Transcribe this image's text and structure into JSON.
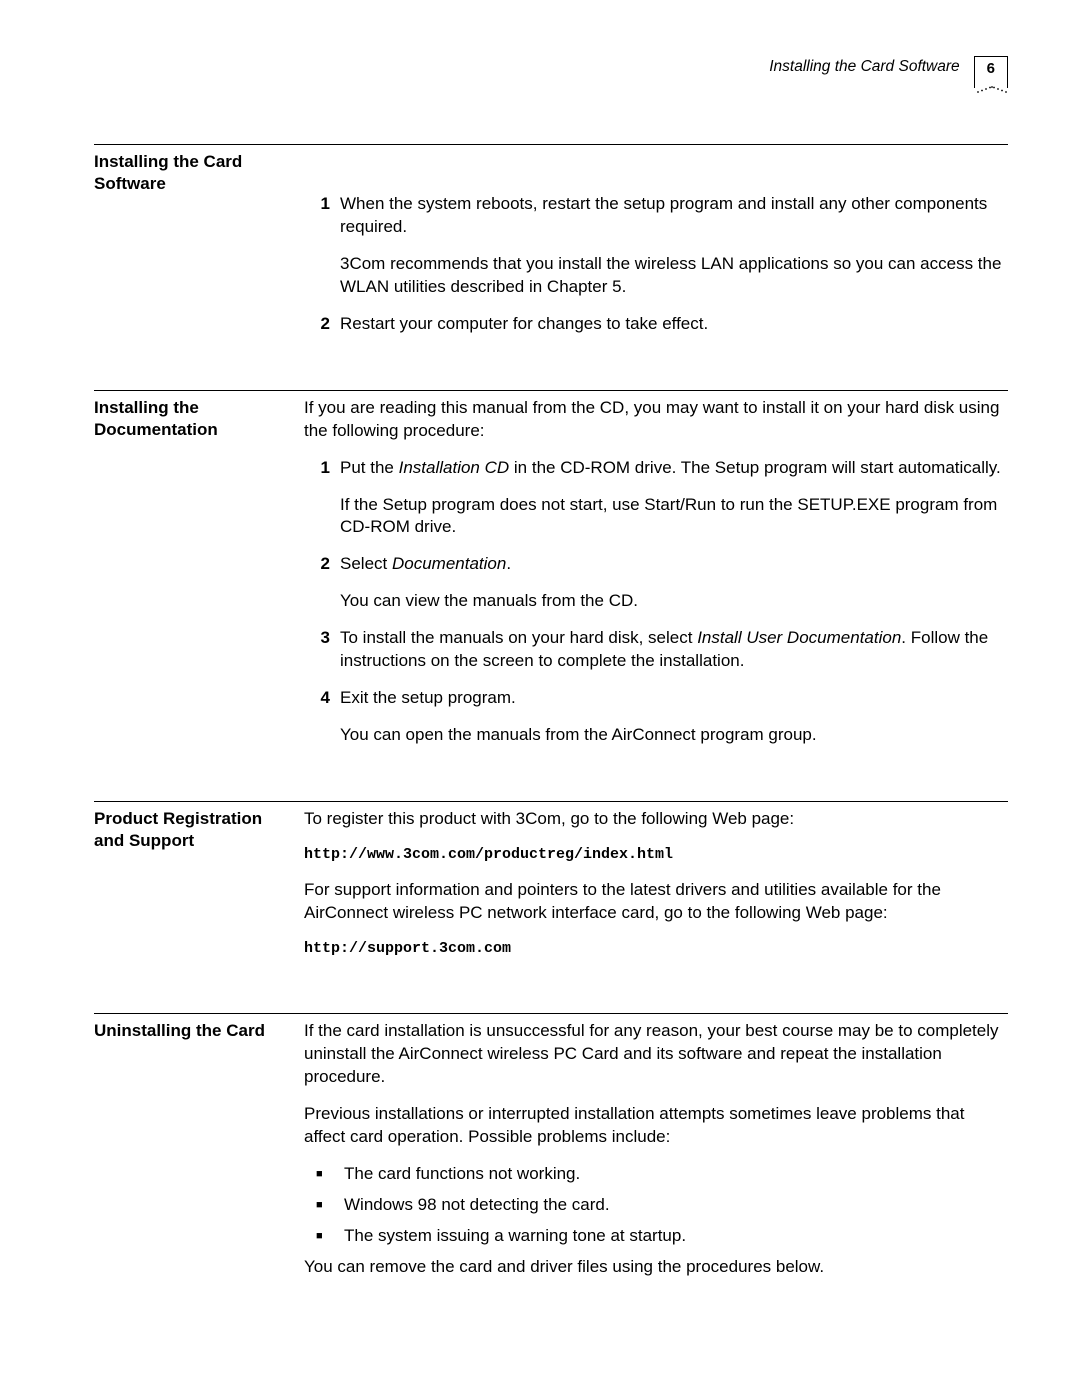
{
  "header": {
    "breadcrumb": "Installing the Card Software",
    "page_number": "6"
  },
  "sections": [
    {
      "label": "Installing the Card Software",
      "blocks": [
        {
          "type": "spacer"
        },
        {
          "type": "ordered",
          "num": "1",
          "text": "When the system reboots, restart the setup program and install any other components required.",
          "after": "3Com recommends that you install the wireless LAN applications so you can access the WLAN utilities described in Chapter 5."
        },
        {
          "type": "ordered",
          "num": "2",
          "text": "Restart your computer for changes to take effect."
        }
      ]
    },
    {
      "label": "Installing the Documentation",
      "blocks": [
        {
          "type": "para",
          "text": "If you are reading this manual from the CD, you may want to install it on your hard disk using the following procedure:"
        },
        {
          "type": "ordered",
          "num": "1",
          "runs": [
            {
              "t": "Put the "
            },
            {
              "t": "Installation CD",
              "i": true
            },
            {
              "t": " in the CD-ROM drive. The Setup program will start automatically."
            }
          ],
          "after": "If the Setup program does not start, use Start/Run to run the SETUP.EXE program from CD-ROM drive."
        },
        {
          "type": "ordered",
          "num": "2",
          "runs": [
            {
              "t": "Select "
            },
            {
              "t": "Documentation",
              "i": true
            },
            {
              "t": "."
            }
          ],
          "after": "You can view the manuals from the CD."
        },
        {
          "type": "ordered",
          "num": "3",
          "runs": [
            {
              "t": "To install the manuals on your hard disk, select "
            },
            {
              "t": "Install User Documentation",
              "i": true
            },
            {
              "t": ". Follow the instructions on the screen to complete the installation."
            }
          ]
        },
        {
          "type": "ordered",
          "num": "4",
          "text": "Exit the setup program.",
          "after": "You can open the manuals from the AirConnect program group."
        }
      ]
    },
    {
      "label": "Product Registration and Support",
      "blocks": [
        {
          "type": "para",
          "text": "To register this product with 3Com, go to the following Web page:"
        },
        {
          "type": "url",
          "text": "http://www.3com.com/productreg/index.html"
        },
        {
          "type": "para",
          "text": "For support information and pointers to the latest drivers and utilities available for the AirConnect wireless PC network interface card, go to the following Web page:"
        },
        {
          "type": "url",
          "text": "http://support.3com.com"
        }
      ]
    },
    {
      "label": "Uninstalling the Card",
      "blocks": [
        {
          "type": "para",
          "text": "If the card installation is unsuccessful for any reason, your best course may be to completely uninstall the AirConnect wireless PC Card and its software and repeat the installation procedure."
        },
        {
          "type": "para",
          "text": "Previous installations or interrupted installation attempts sometimes leave problems that affect card operation. Possible problems include:"
        },
        {
          "type": "bullet",
          "text": "The card functions not working."
        },
        {
          "type": "bullet",
          "text": "Windows 98 not detecting the card."
        },
        {
          "type": "bullet",
          "text": "The system issuing a warning tone at startup."
        },
        {
          "type": "para",
          "text": "You can remove the card and driver files using the procedures below."
        }
      ]
    }
  ],
  "style": {
    "text_color": "#000000",
    "background_color": "#ffffff",
    "rule_color": "#000000",
    "body_font_size": 17,
    "label_font_size": 17,
    "mono_font_size": 15,
    "header_font_size": 15.5,
    "label_col_width": 210
  }
}
